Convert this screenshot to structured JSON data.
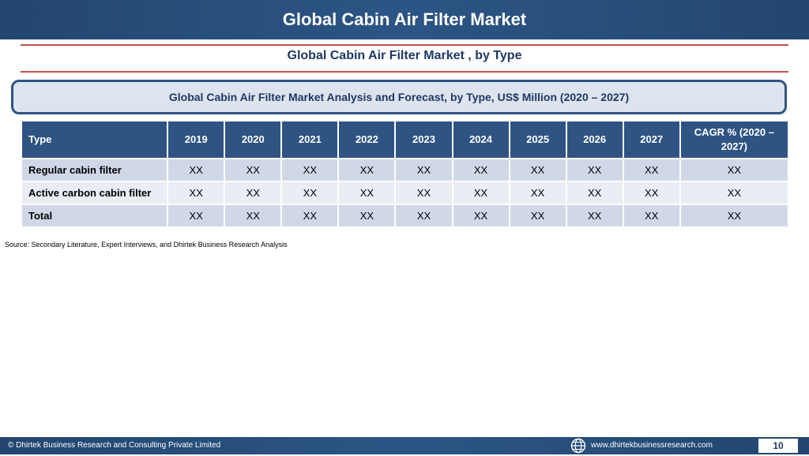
{
  "header": {
    "title": "Global Cabin Air Filter Market"
  },
  "subtitle": "Global Cabin Air Filter Market , by Type",
  "banner": "Global Cabin Air Filter Market  Analysis and Forecast, by Type, US$ Million (2020 – 2027)",
  "table": {
    "headers": [
      "Type",
      "2019",
      "2020",
      "2021",
      "2022",
      "2023",
      "2024",
      "2025",
      "2026",
      "2027",
      "CAGR % (2020 – 2027)"
    ],
    "rows": [
      {
        "label": "Regular cabin filter",
        "values": [
          "XX",
          "XX",
          "XX",
          "XX",
          "XX",
          "XX",
          "XX",
          "XX",
          "XX",
          "XX"
        ]
      },
      {
        "label": "Active carbon cabin filter",
        "values": [
          "XX",
          "XX",
          "XX",
          "XX",
          "XX",
          "XX",
          "XX",
          "XX",
          "XX",
          "XX"
        ]
      },
      {
        "label": "Total",
        "values": [
          "XX",
          "XX",
          "XX",
          "XX",
          "XX",
          "XX",
          "XX",
          "XX",
          "XX",
          "XX"
        ]
      }
    ]
  },
  "source": "Source: Secondary Literature, Expert Interviews, and Dhirtek Business Research Analysis",
  "footer": {
    "copyright": "© Dhirtek Business Research and Consulting Private Limited",
    "website": "www.dhirtekbusinessresearch.com",
    "page_number": "10",
    "website_icon": "globe-icon"
  },
  "colors": {
    "header_bg": "#2c5585",
    "accent_rule": "#c0504d",
    "table_header_bg": "#2f5483",
    "row_band_1": "#d0d8e8",
    "row_band_2": "#e9edf4"
  }
}
